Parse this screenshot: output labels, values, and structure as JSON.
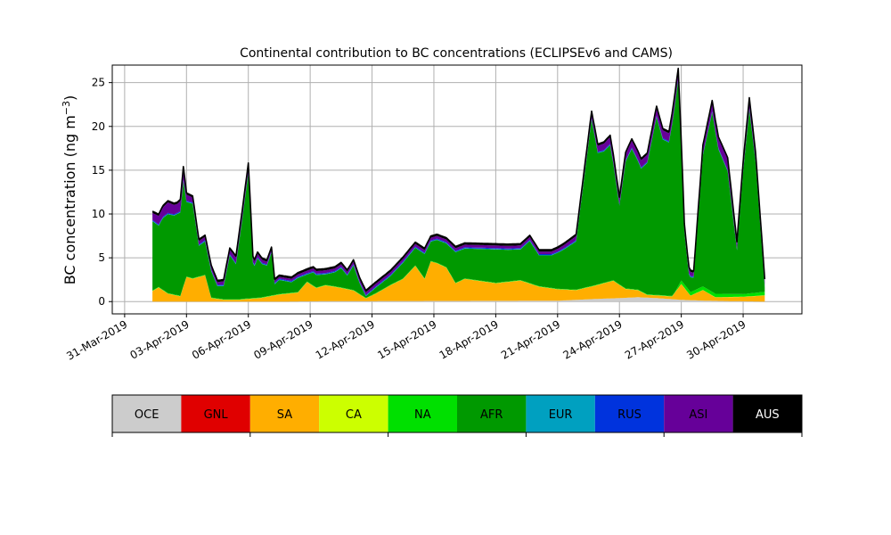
{
  "chart_data": {
    "type": "area",
    "stacked": true,
    "title": "Continental contribution to BC concentrations (ECLIPSEv6 and CAMS)",
    "ylabel": "BC concentration (ng m",
    "ylabel_sup": "−3",
    "ylabel_close": ")",
    "ylim": [
      -1.4,
      27
    ],
    "xlim": [
      -0.2,
      10.95
    ],
    "yticks": [
      0,
      5,
      10,
      15,
      20,
      25
    ],
    "xticks": [
      {
        "pos": 0,
        "label": "31-Mar-2019"
      },
      {
        "pos": 1,
        "label": "03-Apr-2019"
      },
      {
        "pos": 2,
        "label": "06-Apr-2019"
      },
      {
        "pos": 3,
        "label": "09-Apr-2019"
      },
      {
        "pos": 4,
        "label": "12-Apr-2019"
      },
      {
        "pos": 5,
        "label": "15-Apr-2019"
      },
      {
        "pos": 6,
        "label": "18-Apr-2019"
      },
      {
        "pos": 7,
        "label": "21-Apr-2019"
      },
      {
        "pos": 8,
        "label": "24-Apr-2019"
      },
      {
        "pos": 9,
        "label": "27-Apr-2019"
      },
      {
        "pos": 10,
        "label": "30-Apr-2019"
      }
    ],
    "grid": true,
    "x_note": "x positions are in units of 3-day steps from 31-Mar-2019",
    "series": [
      {
        "name": "OCE",
        "color": "#cccccc",
        "points": [
          [
            0.45,
            0
          ],
          [
            2.5,
            0
          ],
          [
            3.3,
            0.05
          ],
          [
            7.0,
            0.1
          ],
          [
            7.3,
            0.2
          ],
          [
            7.6,
            0.3
          ],
          [
            8.0,
            0.4
          ],
          [
            8.3,
            0.5
          ],
          [
            8.6,
            0.4
          ],
          [
            9.0,
            0.2
          ],
          [
            9.4,
            0.1
          ],
          [
            10.35,
            0
          ]
        ]
      },
      {
        "name": "GNL",
        "color": "#e00000",
        "points": [
          [
            0.45,
            0
          ],
          [
            10.35,
            0
          ]
        ]
      },
      {
        "name": "SA",
        "color": "#ffae00",
        "points": [
          [
            0.45,
            1.2
          ],
          [
            0.55,
            1.6
          ],
          [
            0.7,
            0.9
          ],
          [
            0.9,
            0.6
          ],
          [
            1.0,
            2.8
          ],
          [
            1.1,
            2.6
          ],
          [
            1.3,
            3.0
          ],
          [
            1.4,
            0.4
          ],
          [
            1.6,
            0.2
          ],
          [
            1.85,
            0.2
          ],
          [
            2.0,
            0.3
          ],
          [
            2.2,
            0.4
          ],
          [
            2.5,
            0.8
          ],
          [
            2.8,
            1.0
          ],
          [
            2.95,
            2.2
          ],
          [
            3.1,
            1.5
          ],
          [
            3.25,
            1.8
          ],
          [
            3.5,
            1.5
          ],
          [
            3.7,
            1.2
          ],
          [
            3.9,
            0.3
          ],
          [
            4.05,
            0.8
          ],
          [
            4.3,
            1.8
          ],
          [
            4.5,
            2.5
          ],
          [
            4.7,
            4.0
          ],
          [
            4.85,
            2.5
          ],
          [
            4.95,
            4.5
          ],
          [
            5.05,
            4.3
          ],
          [
            5.2,
            3.8
          ],
          [
            5.35,
            2.0
          ],
          [
            5.5,
            2.5
          ],
          [
            6.0,
            2.0
          ],
          [
            6.4,
            2.3
          ],
          [
            6.7,
            1.6
          ],
          [
            7.0,
            1.3
          ],
          [
            7.3,
            1.1
          ],
          [
            7.6,
            1.5
          ],
          [
            7.9,
            2.0
          ],
          [
            8.1,
            1.0
          ],
          [
            8.3,
            0.8
          ],
          [
            8.45,
            0.3
          ],
          [
            8.6,
            0.3
          ],
          [
            8.85,
            0.3
          ],
          [
            9.0,
            1.8
          ],
          [
            9.15,
            0.5
          ],
          [
            9.35,
            1.2
          ],
          [
            9.55,
            0.4
          ],
          [
            10.0,
            0.5
          ],
          [
            10.35,
            0.7
          ]
        ]
      },
      {
        "name": "CA",
        "color": "#ccff00",
        "points": [
          [
            0.45,
            0.02
          ],
          [
            10.35,
            0.02
          ]
        ]
      },
      {
        "name": "NA",
        "color": "#00e000",
        "points": [
          [
            0.45,
            0.05
          ],
          [
            8.9,
            0.05
          ],
          [
            9.0,
            0.4
          ],
          [
            9.5,
            0.4
          ],
          [
            10.0,
            0.3
          ],
          [
            10.35,
            0.4
          ]
        ]
      },
      {
        "name": "AFR",
        "color": "#009900",
        "points": [
          [
            0.45,
            7.9
          ],
          [
            0.55,
            7.0
          ],
          [
            0.62,
            8.2
          ],
          [
            0.7,
            9.0
          ],
          [
            0.8,
            9.0
          ],
          [
            0.9,
            9.5
          ],
          [
            0.95,
            12.0
          ],
          [
            1.0,
            8.5
          ],
          [
            1.1,
            8.5
          ],
          [
            1.2,
            3.5
          ],
          [
            1.3,
            3.8
          ],
          [
            1.4,
            3.0
          ],
          [
            1.5,
            1.4
          ],
          [
            1.6,
            1.5
          ],
          [
            1.7,
            5.0
          ],
          [
            1.8,
            4.0
          ],
          [
            1.9,
            9.0
          ],
          [
            2.0,
            14.3
          ],
          [
            2.08,
            3.3
          ],
          [
            2.15,
            4.5
          ],
          [
            2.22,
            3.8
          ],
          [
            2.3,
            3.5
          ],
          [
            2.38,
            5.0
          ],
          [
            2.42,
            1.2
          ],
          [
            2.5,
            1.6
          ],
          [
            2.7,
            1.2
          ],
          [
            2.8,
            1.6
          ],
          [
            2.95,
            0.8
          ],
          [
            3.05,
            1.5
          ],
          [
            3.25,
            1.2
          ],
          [
            3.4,
            1.6
          ],
          [
            3.5,
            2.2
          ],
          [
            3.6,
            1.5
          ],
          [
            3.7,
            2.8
          ],
          [
            3.8,
            1.2
          ],
          [
            3.9,
            0.2
          ],
          [
            4.05,
            0.6
          ],
          [
            4.3,
            1.0
          ],
          [
            4.5,
            1.8
          ],
          [
            4.7,
            2.0
          ],
          [
            4.85,
            2.8
          ],
          [
            4.95,
            2.2
          ],
          [
            5.05,
            2.6
          ],
          [
            5.2,
            2.7
          ],
          [
            5.35,
            3.5
          ],
          [
            5.5,
            3.4
          ],
          [
            6.0,
            3.8
          ],
          [
            6.2,
            3.6
          ],
          [
            6.4,
            3.5
          ],
          [
            6.55,
            4.8
          ],
          [
            6.7,
            3.5
          ],
          [
            6.9,
            3.7
          ],
          [
            7.1,
            4.5
          ],
          [
            7.3,
            5.5
          ],
          [
            7.55,
            19.0
          ],
          [
            7.65,
            15.0
          ],
          [
            7.75,
            15.0
          ],
          [
            7.85,
            15.5
          ],
          [
            8.0,
            9.0
          ],
          [
            8.1,
            14.5
          ],
          [
            8.2,
            16.0
          ],
          [
            8.35,
            14.0
          ],
          [
            8.45,
            15.0
          ],
          [
            8.6,
            20.3
          ],
          [
            8.7,
            17.8
          ],
          [
            8.8,
            17.5
          ],
          [
            8.95,
            23.5
          ],
          [
            9.05,
            6.0
          ],
          [
            9.12,
            1.8
          ],
          [
            9.2,
            1.5
          ],
          [
            9.35,
            15.0
          ],
          [
            9.5,
            20.5
          ],
          [
            9.6,
            16.5
          ],
          [
            9.75,
            14.0
          ],
          [
            9.9,
            5.0
          ],
          [
            10.0,
            14.0
          ],
          [
            10.1,
            21.0
          ],
          [
            10.2,
            15.0
          ],
          [
            10.35,
            0.5
          ]
        ]
      },
      {
        "name": "EUR",
        "color": "#00a0c0",
        "points": [
          [
            0.45,
            0.05
          ],
          [
            10.35,
            0.05
          ]
        ]
      },
      {
        "name": "RUS",
        "color": "#0033dd",
        "points": [
          [
            0.45,
            0.1
          ],
          [
            10.35,
            0.1
          ]
        ]
      },
      {
        "name": "ASI",
        "color": "#660099",
        "points": [
          [
            0.45,
            0.8
          ],
          [
            0.7,
            1.2
          ],
          [
            0.85,
            1.0
          ],
          [
            0.95,
            1.3
          ],
          [
            1.0,
            0.7
          ],
          [
            1.2,
            0.4
          ],
          [
            1.5,
            0.3
          ],
          [
            2.0,
            0.8
          ],
          [
            2.08,
            0.4
          ],
          [
            2.3,
            0.3
          ],
          [
            2.5,
            0.2
          ],
          [
            3.0,
            0.3
          ],
          [
            3.5,
            0.3
          ],
          [
            4.0,
            0.3
          ],
          [
            4.5,
            0.3
          ],
          [
            5.0,
            0.3
          ],
          [
            6.0,
            0.3
          ],
          [
            6.5,
            0.3
          ],
          [
            7.0,
            0.3
          ],
          [
            7.55,
            0.6
          ],
          [
            7.85,
            0.8
          ],
          [
            8.0,
            0.6
          ],
          [
            8.2,
            0.8
          ],
          [
            8.45,
            0.8
          ],
          [
            8.6,
            0.9
          ],
          [
            8.8,
            0.9
          ],
          [
            8.95,
            1.0
          ],
          [
            9.05,
            0.6
          ],
          [
            9.2,
            0.4
          ],
          [
            9.35,
            0.8
          ],
          [
            9.5,
            1.0
          ],
          [
            9.75,
            1.2
          ],
          [
            9.9,
            0.6
          ],
          [
            10.1,
            1.0
          ],
          [
            10.2,
            0.8
          ],
          [
            10.35,
            0.6
          ]
        ]
      },
      {
        "name": "AUS",
        "color": "#000000",
        "points": [
          [
            0.45,
            0.2
          ],
          [
            10.35,
            0.2
          ]
        ]
      }
    ]
  },
  "legend": {
    "items": [
      {
        "label": "OCE",
        "color": "#cccccc",
        "text_color": "#000000"
      },
      {
        "label": "GNL",
        "color": "#e00000",
        "text_color": "#000000"
      },
      {
        "label": "SA",
        "color": "#ffae00",
        "text_color": "#000000"
      },
      {
        "label": "CA",
        "color": "#ccff00",
        "text_color": "#000000"
      },
      {
        "label": "NA",
        "color": "#00e000",
        "text_color": "#000000"
      },
      {
        "label": "AFR",
        "color": "#009900",
        "text_color": "#000000"
      },
      {
        "label": "EUR",
        "color": "#00a0c0",
        "text_color": "#000000"
      },
      {
        "label": "RUS",
        "color": "#0033dd",
        "text_color": "#000000"
      },
      {
        "label": "ASI",
        "color": "#660099",
        "text_color": "#000000"
      },
      {
        "label": "AUS",
        "color": "#000000",
        "text_color": "#ffffff"
      }
    ]
  }
}
